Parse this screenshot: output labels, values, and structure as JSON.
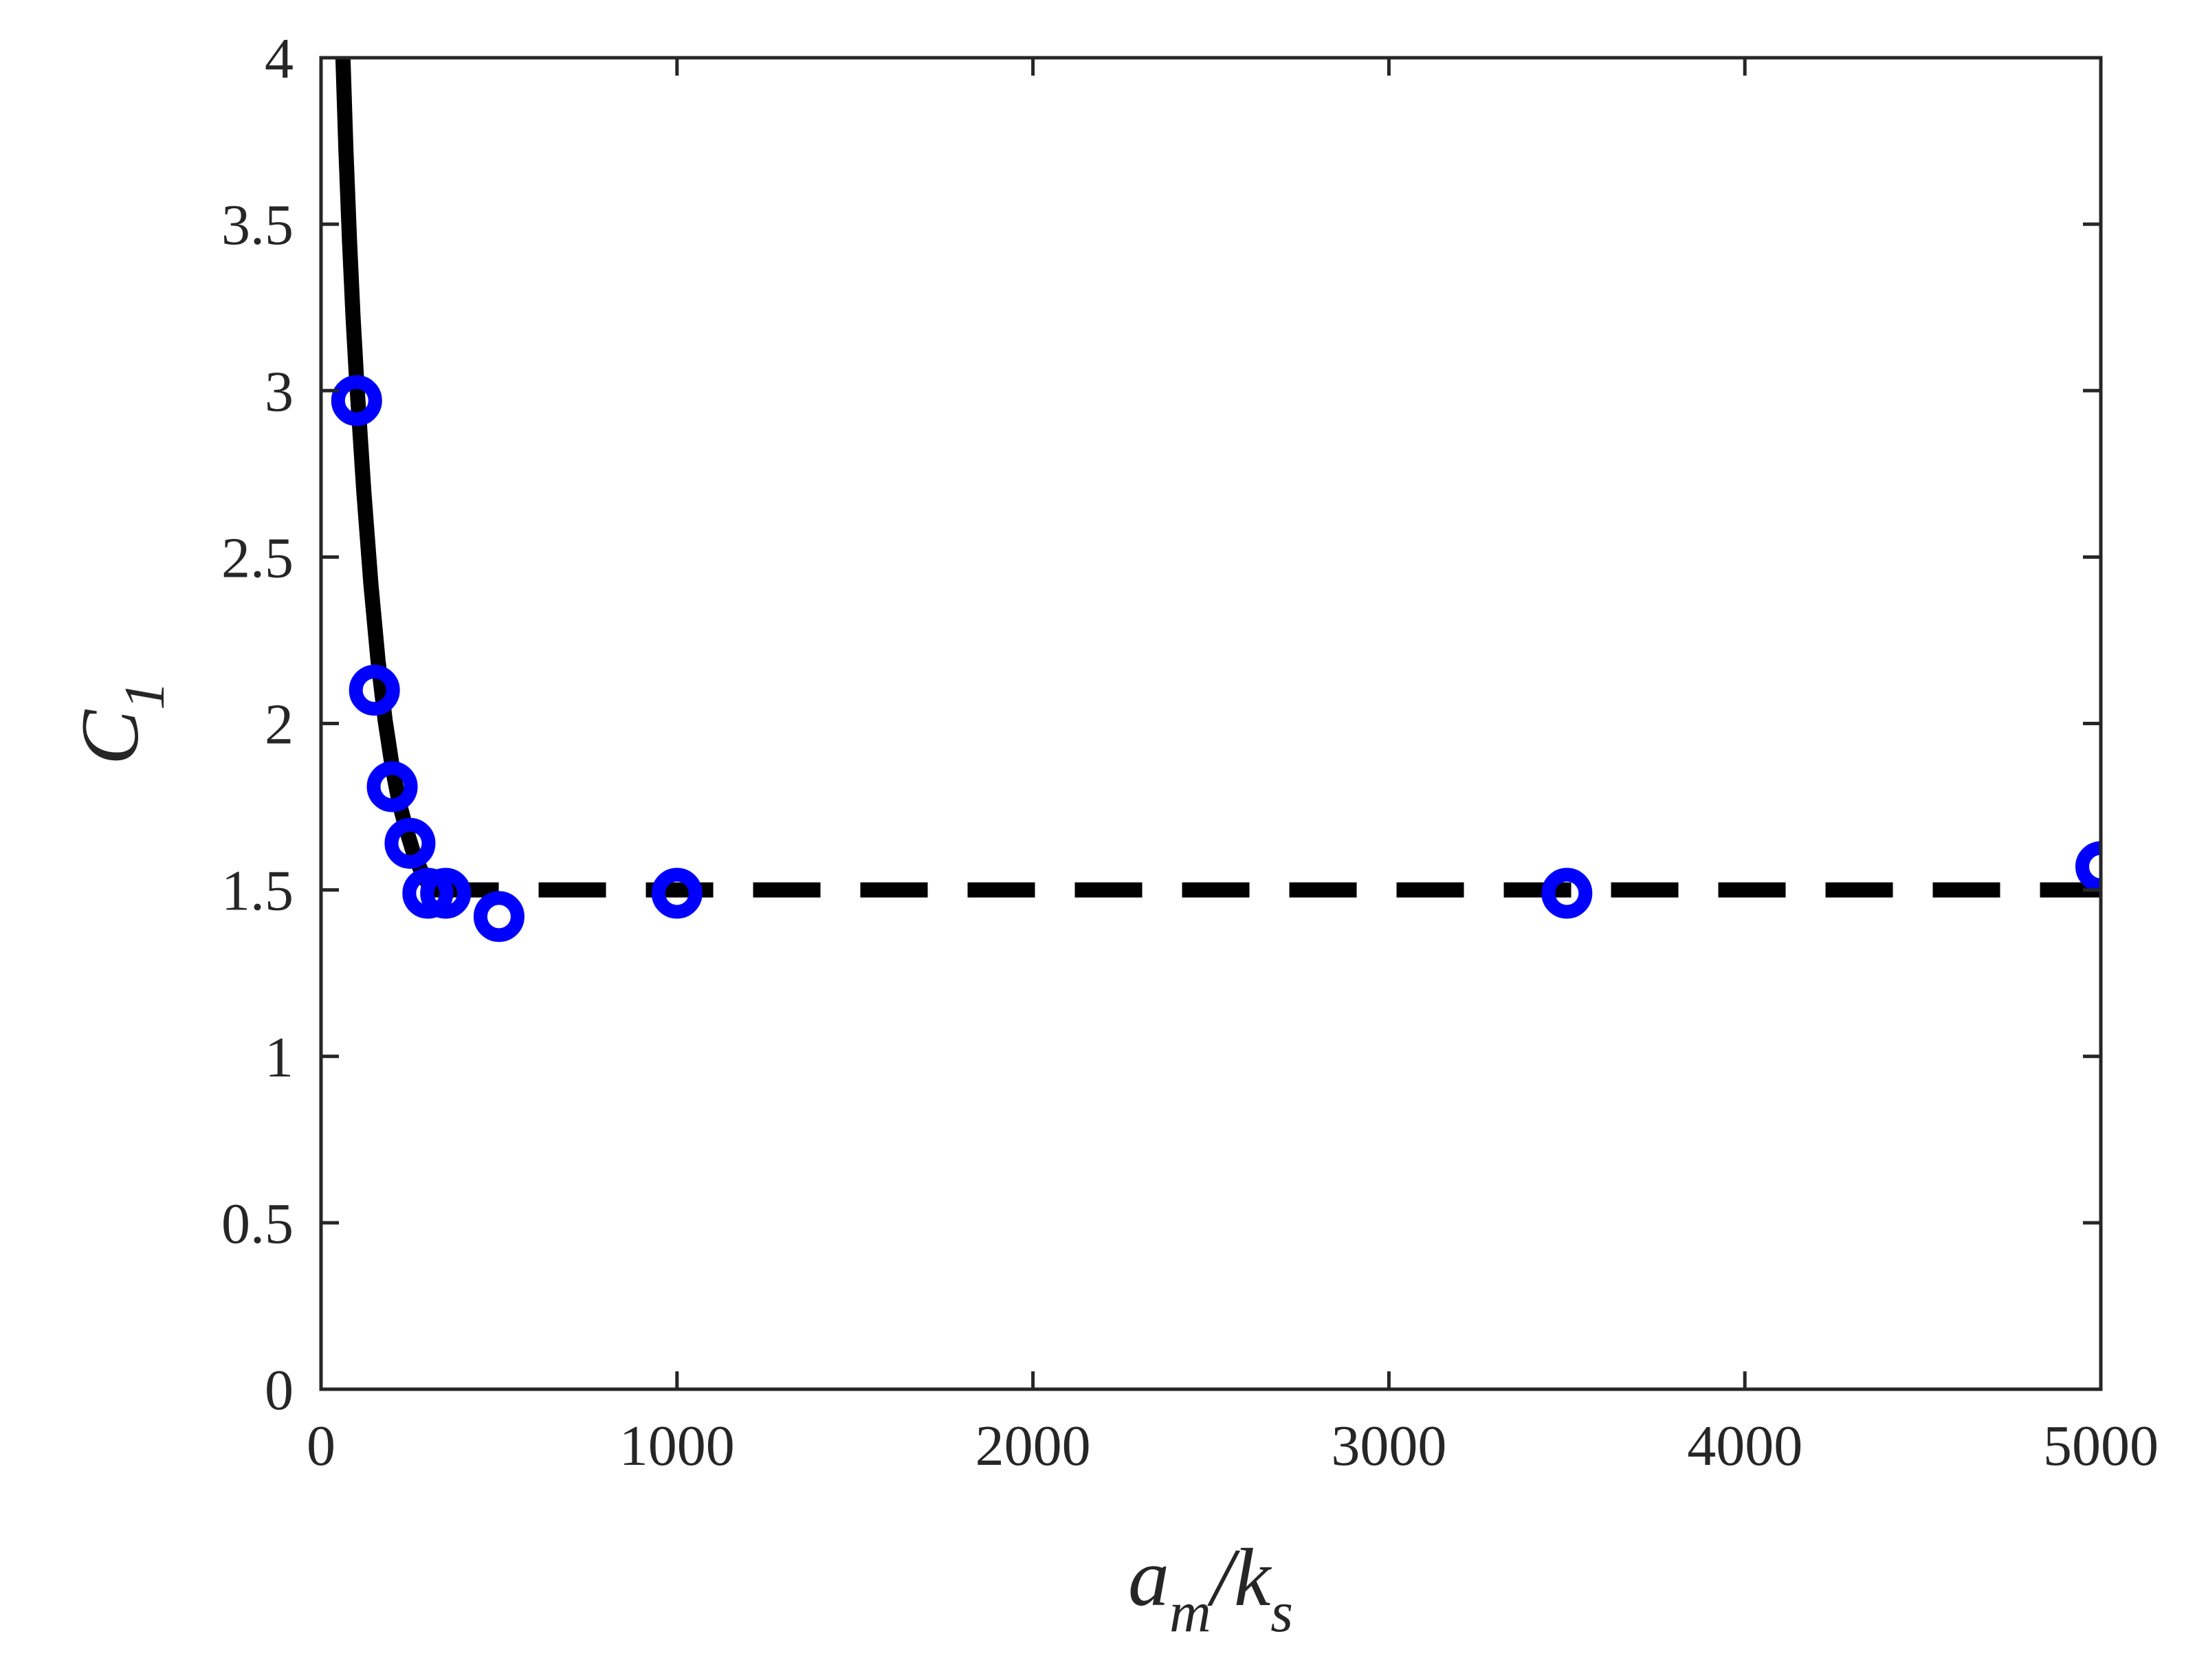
{
  "chart_data": {
    "type": "scatter",
    "title": "",
    "xlabel": {
      "main": "a",
      "sub": "m",
      "sep": "/k",
      "sub2": "s"
    },
    "ylabel": {
      "main": "C",
      "sub": "1"
    },
    "xlim": [
      0,
      5000
    ],
    "ylim": [
      0,
      4
    ],
    "xticks": [
      0,
      1000,
      2000,
      3000,
      4000,
      5000
    ],
    "xtick_labels": [
      "0",
      "1000",
      "2000",
      "3000",
      "4000",
      "5000"
    ],
    "yticks": [
      0,
      0.5,
      1,
      1.5,
      2,
      2.5,
      3,
      3.5,
      4
    ],
    "ytick_labels": [
      "0",
      "0.5",
      "1",
      "1.5",
      "2",
      "2.5",
      "3",
      "3.5",
      "4"
    ],
    "grid": false,
    "legend": "none",
    "series": [
      {
        "kind": "markers",
        "marker": "circle-open",
        "color": "#0000ff",
        "x": [
          100,
          150,
          200,
          250,
          300,
          350,
          500,
          1000,
          3500,
          5000
        ],
        "y": [
          2.97,
          2.1,
          1.81,
          1.64,
          1.49,
          1.49,
          1.42,
          1.49,
          1.49,
          1.57
        ]
      },
      {
        "kind": "line",
        "style": "solid",
        "color": "#000000",
        "x": [
          50,
          60,
          70,
          80,
          90,
          100,
          120,
          140,
          160,
          180,
          200,
          220,
          240,
          260,
          280,
          300,
          310
        ],
        "y": [
          4.35,
          4.05,
          3.72,
          3.45,
          3.22,
          3.03,
          2.7,
          2.42,
          2.19,
          2.01,
          1.87,
          1.76,
          1.68,
          1.61,
          1.56,
          1.52,
          1.5
        ]
      },
      {
        "kind": "line",
        "style": "dashed",
        "color": "#000000",
        "x": [
          310,
          5000
        ],
        "y": [
          1.5,
          1.5
        ]
      }
    ]
  }
}
